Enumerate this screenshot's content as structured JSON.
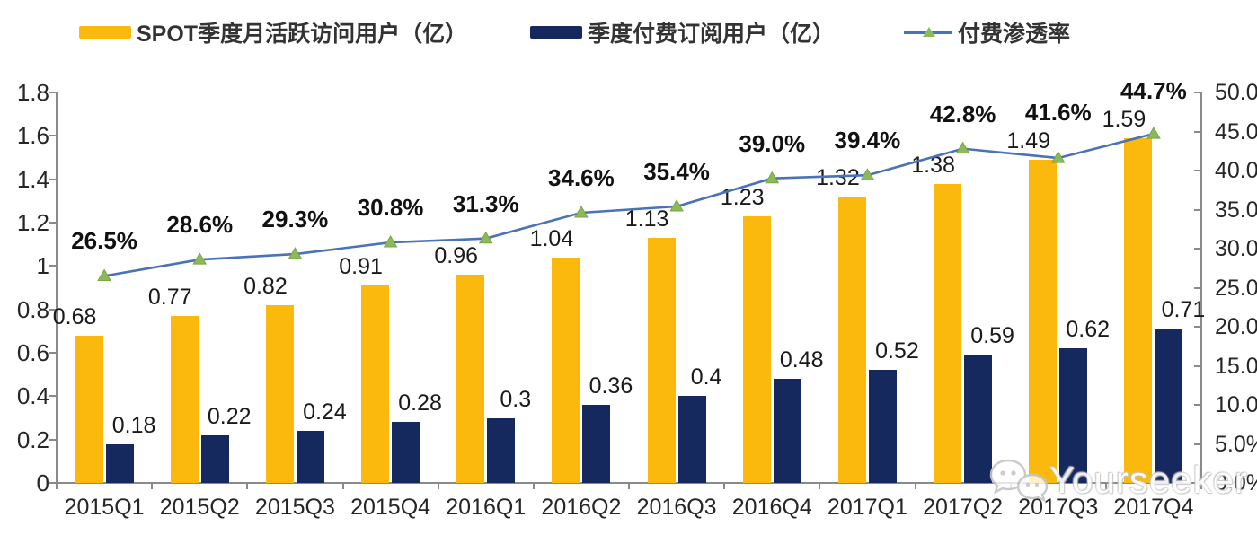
{
  "legend": {
    "items": [
      {
        "label": "SPOT季度月活跃访问用户（亿）",
        "swatch_color": "#fbb90d",
        "type": "bar"
      },
      {
        "label": "季度付费订阅用户（亿）",
        "swatch_color": "#16295f",
        "type": "bar"
      },
      {
        "label": "付费渗透率",
        "line_color": "#4a72b8",
        "marker_color": "#8dba58",
        "type": "line"
      }
    ]
  },
  "chart_data": {
    "type": "bar",
    "subtype": "combo-bar-line-dual-axis",
    "categories": [
      "2015Q1",
      "2015Q2",
      "2015Q3",
      "2015Q4",
      "2016Q1",
      "2016Q2",
      "2016Q3",
      "2016Q4",
      "2017Q1",
      "2017Q2",
      "2017Q3",
      "2017Q4"
    ],
    "series": [
      {
        "name": "SPOT季度月活跃访问用户（亿）",
        "type": "bar",
        "axis": "left",
        "color": "#fbb90d",
        "values": [
          0.68,
          0.77,
          0.82,
          0.91,
          0.96,
          1.04,
          1.13,
          1.23,
          1.32,
          1.38,
          1.49,
          1.59
        ],
        "labels": [
          "0.68",
          "0.77",
          "0.82",
          "0.91",
          "0.96",
          "1.04",
          "1.13",
          "1.23",
          "1.32",
          "1.38",
          "1.49",
          "1.59"
        ]
      },
      {
        "name": "季度付费订阅用户（亿）",
        "type": "bar",
        "axis": "left",
        "color": "#16295f",
        "values": [
          0.18,
          0.22,
          0.24,
          0.28,
          0.3,
          0.36,
          0.4,
          0.48,
          0.52,
          0.59,
          0.62,
          0.71
        ],
        "labels": [
          "0.18",
          "0.22",
          "0.24",
          "0.28",
          "0.3",
          "0.36",
          "0.4",
          "0.48",
          "0.52",
          "0.59",
          "0.62",
          "0.71"
        ]
      },
      {
        "name": "付费渗透率",
        "type": "line",
        "axis": "right",
        "color": "#4a72b8",
        "marker": "triangle",
        "marker_color": "#8dba58",
        "values": [
          26.5,
          28.6,
          29.3,
          30.8,
          31.3,
          34.6,
          35.4,
          39.0,
          39.4,
          42.8,
          41.6,
          44.7
        ],
        "labels": [
          "26.5%",
          "28.6%",
          "29.3%",
          "30.8%",
          "31.3%",
          "34.6%",
          "35.4%",
          "39.0%",
          "39.4%",
          "42.8%",
          "41.6%",
          "44.7%"
        ]
      }
    ],
    "left_axis": {
      "min": 0,
      "max": 1.8,
      "step": 0.2,
      "tick_labels": [
        "0",
        "0.2",
        "0.4",
        "0.6",
        "0.8",
        "1",
        "1.2",
        "1.4",
        "1.6",
        "1.8"
      ]
    },
    "right_axis": {
      "min": 0,
      "max": 50,
      "step": 5,
      "tick_labels": [
        "0.0%",
        "5.0%",
        "10.0%",
        "15.0%",
        "20.0%",
        "25.0%",
        "30.0%",
        "35.0%",
        "40.0%",
        "45.0%",
        "50.0%"
      ]
    },
    "grid": false,
    "legend_position": "top",
    "title": ""
  },
  "watermark": {
    "text": "Yourseeker",
    "icon": "wechat-icon"
  }
}
